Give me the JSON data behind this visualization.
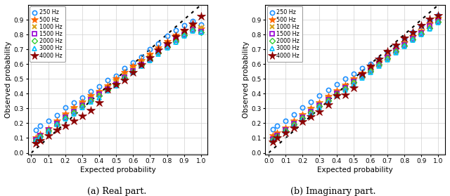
{
  "title_a": "(a) Real part.",
  "title_b": "(b) Imaginary part.",
  "xlabel": "Expected probability",
  "ylabel": "Observed probability",
  "xlim": [
    -0.02,
    1.05
  ],
  "ylim": [
    0,
    1.0
  ],
  "xticks": [
    0.0,
    0.1,
    0.2,
    0.3,
    0.4,
    0.5,
    0.6,
    0.7,
    0.8,
    0.9,
    1.0
  ],
  "yticks": [
    0.0,
    0.1,
    0.2,
    0.3,
    0.4,
    0.5,
    0.6,
    0.7,
    0.8,
    0.9
  ],
  "frequencies": [
    "250 Hz",
    "500 Hz",
    "1000 Hz",
    "1500 Hz",
    "2000 Hz",
    "3000 Hz",
    "4000 Hz"
  ],
  "colors": [
    "#1E90FF",
    "#FF6600",
    "#DAA520",
    "#9400D3",
    "#32CD32",
    "#00BFFF",
    "#8B0000"
  ],
  "expected_probs": [
    0.025,
    0.05,
    0.1,
    0.15,
    0.2,
    0.25,
    0.3,
    0.35,
    0.4,
    0.45,
    0.5,
    0.55,
    0.6,
    0.65,
    0.7,
    0.75,
    0.8,
    0.85,
    0.9,
    0.95,
    1.0
  ],
  "observed_real": {
    "250 Hz": [
      0.155,
      0.185,
      0.215,
      0.255,
      0.305,
      0.34,
      0.375,
      0.415,
      0.45,
      0.49,
      0.52,
      0.57,
      0.61,
      0.65,
      0.7,
      0.74,
      0.79,
      0.83,
      0.86,
      0.89,
      0.865
    ],
    "500 Hz": [
      0.1,
      0.125,
      0.165,
      0.215,
      0.265,
      0.305,
      0.345,
      0.385,
      0.415,
      0.455,
      0.5,
      0.545,
      0.585,
      0.625,
      0.665,
      0.71,
      0.755,
      0.795,
      0.83,
      0.865,
      0.84
    ],
    "1000 Hz": [
      0.085,
      0.105,
      0.15,
      0.195,
      0.245,
      0.285,
      0.325,
      0.365,
      0.395,
      0.435,
      0.475,
      0.52,
      0.565,
      0.605,
      0.645,
      0.685,
      0.73,
      0.77,
      0.81,
      0.845,
      0.845
    ],
    "1500 Hz": [
      0.09,
      0.115,
      0.155,
      0.195,
      0.24,
      0.28,
      0.32,
      0.36,
      0.395,
      0.43,
      0.465,
      0.51,
      0.555,
      0.595,
      0.635,
      0.68,
      0.72,
      0.76,
      0.8,
      0.835,
      0.82
    ],
    "2000 Hz": [
      0.085,
      0.11,
      0.15,
      0.19,
      0.235,
      0.275,
      0.315,
      0.355,
      0.385,
      0.425,
      0.46,
      0.505,
      0.55,
      0.59,
      0.63,
      0.675,
      0.715,
      0.755,
      0.795,
      0.83,
      0.815
    ],
    "3000 Hz": [
      0.085,
      0.105,
      0.145,
      0.19,
      0.23,
      0.265,
      0.305,
      0.345,
      0.375,
      0.42,
      0.455,
      0.5,
      0.545,
      0.585,
      0.625,
      0.665,
      0.71,
      0.75,
      0.79,
      0.825,
      0.815
    ],
    "4000 Hz": [
      0.065,
      0.085,
      0.115,
      0.155,
      0.185,
      0.215,
      0.25,
      0.285,
      0.34,
      0.43,
      0.465,
      0.49,
      0.545,
      0.595,
      0.645,
      0.695,
      0.74,
      0.785,
      0.83,
      0.87,
      0.925
    ]
  },
  "observed_imag": {
    "250 Hz": [
      0.16,
      0.185,
      0.215,
      0.26,
      0.305,
      0.345,
      0.385,
      0.425,
      0.465,
      0.5,
      0.535,
      0.57,
      0.6,
      0.635,
      0.675,
      0.72,
      0.77,
      0.815,
      0.855,
      0.895,
      0.93
    ],
    "500 Hz": [
      0.115,
      0.135,
      0.17,
      0.215,
      0.26,
      0.3,
      0.34,
      0.38,
      0.42,
      0.46,
      0.5,
      0.54,
      0.575,
      0.615,
      0.655,
      0.7,
      0.745,
      0.785,
      0.825,
      0.87,
      0.91
    ],
    "1000 Hz": [
      0.09,
      0.11,
      0.155,
      0.2,
      0.245,
      0.285,
      0.325,
      0.365,
      0.4,
      0.44,
      0.48,
      0.52,
      0.56,
      0.6,
      0.645,
      0.69,
      0.735,
      0.775,
      0.815,
      0.855,
      0.895
    ],
    "1500 Hz": [
      0.095,
      0.115,
      0.155,
      0.195,
      0.24,
      0.28,
      0.32,
      0.36,
      0.4,
      0.44,
      0.48,
      0.52,
      0.56,
      0.6,
      0.645,
      0.69,
      0.73,
      0.77,
      0.81,
      0.855,
      0.89
    ],
    "2000 Hz": [
      0.09,
      0.11,
      0.15,
      0.19,
      0.235,
      0.275,
      0.315,
      0.355,
      0.395,
      0.435,
      0.475,
      0.515,
      0.555,
      0.595,
      0.64,
      0.685,
      0.725,
      0.765,
      0.805,
      0.845,
      0.885
    ],
    "3000 Hz": [
      0.085,
      0.105,
      0.145,
      0.185,
      0.225,
      0.265,
      0.305,
      0.345,
      0.385,
      0.425,
      0.465,
      0.505,
      0.545,
      0.585,
      0.63,
      0.675,
      0.72,
      0.76,
      0.8,
      0.84,
      0.88
    ],
    "4000 Hz": [
      0.075,
      0.1,
      0.135,
      0.17,
      0.21,
      0.245,
      0.28,
      0.325,
      0.385,
      0.39,
      0.44,
      0.535,
      0.585,
      0.635,
      0.685,
      0.73,
      0.775,
      0.815,
      0.86,
      0.905,
      0.93
    ]
  },
  "background": "#ffffff",
  "grid_color": "#d0d0d0"
}
